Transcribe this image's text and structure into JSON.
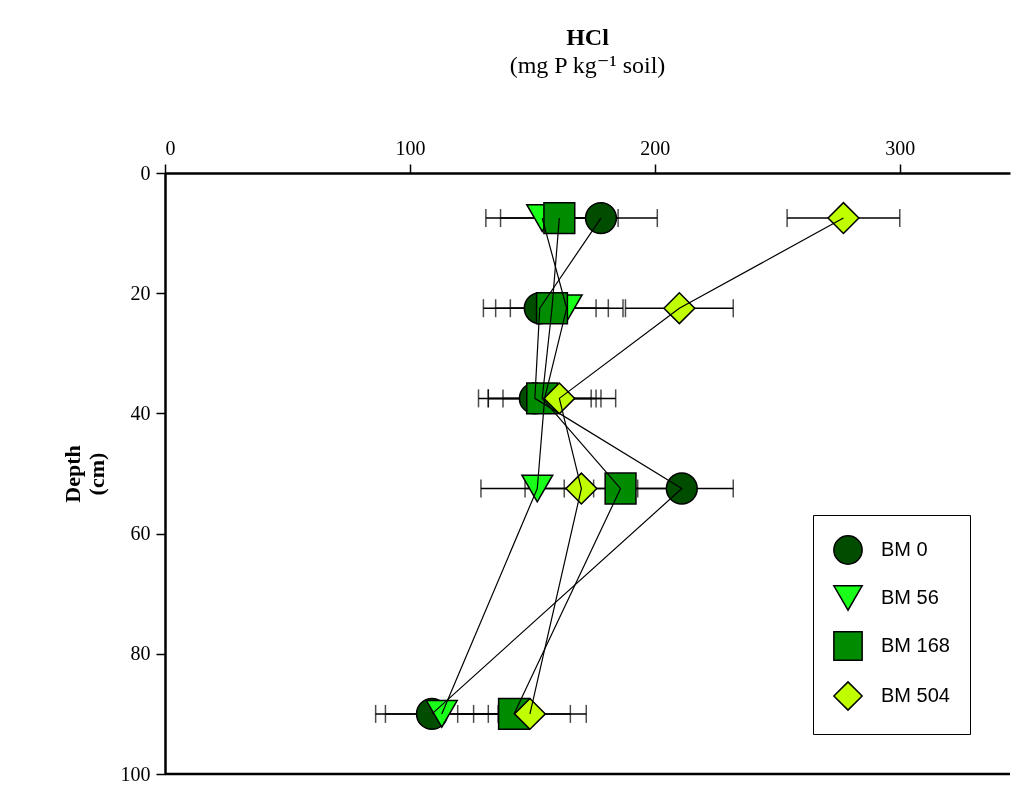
{
  "chart_data": {
    "type": "line",
    "xlabel": "HCl\n(mg P kg⁻¹ soil)",
    "ylabel": "Depth\n(cm)",
    "xlim": [
      0,
      345
    ],
    "xticks": [
      0,
      100,
      200,
      300
    ],
    "ylim": [
      100,
      0
    ],
    "yticks": [
      0,
      20,
      40,
      60,
      80,
      100
    ],
    "legend": "bottom right",
    "line_style": "solid",
    "series": [
      {
        "name": "BM 0",
        "color": "#004d00",
        "marker": "circle",
        "x": [
          178,
          153,
          151,
          211,
          109
        ],
        "values": [
          7.5,
          22.5,
          37.5,
          52.5,
          90
        ],
        "xerrors": [
          23,
          23,
          23,
          21,
          23
        ]
      },
      {
        "name": "BM 56",
        "color": "#1aff1a",
        "marker": "triangle",
        "x": [
          154,
          164,
          155,
          152,
          113
        ],
        "values": [
          7.5,
          22.5,
          37.5,
          52.5,
          90
        ],
        "xerrors": [
          23,
          23,
          23,
          23,
          23
        ]
      },
      {
        "name": "BM 168",
        "color": "#008c00",
        "marker": "square",
        "x": [
          161,
          158,
          154,
          186,
          142.5
        ],
        "values": [
          7.5,
          22.5,
          37.5,
          52.5,
          90
        ],
        "xerrors": [
          24,
          23,
          22,
          23,
          23
        ]
      },
      {
        "name": "BM 504",
        "color": "#bfff00",
        "marker": "diamond",
        "x": [
          277,
          210,
          161,
          170,
          149
        ],
        "values": [
          7.5,
          22.5,
          37.5,
          52.5,
          90
        ],
        "xerrors": [
          23,
          22,
          23,
          23,
          23
        ]
      }
    ]
  }
}
